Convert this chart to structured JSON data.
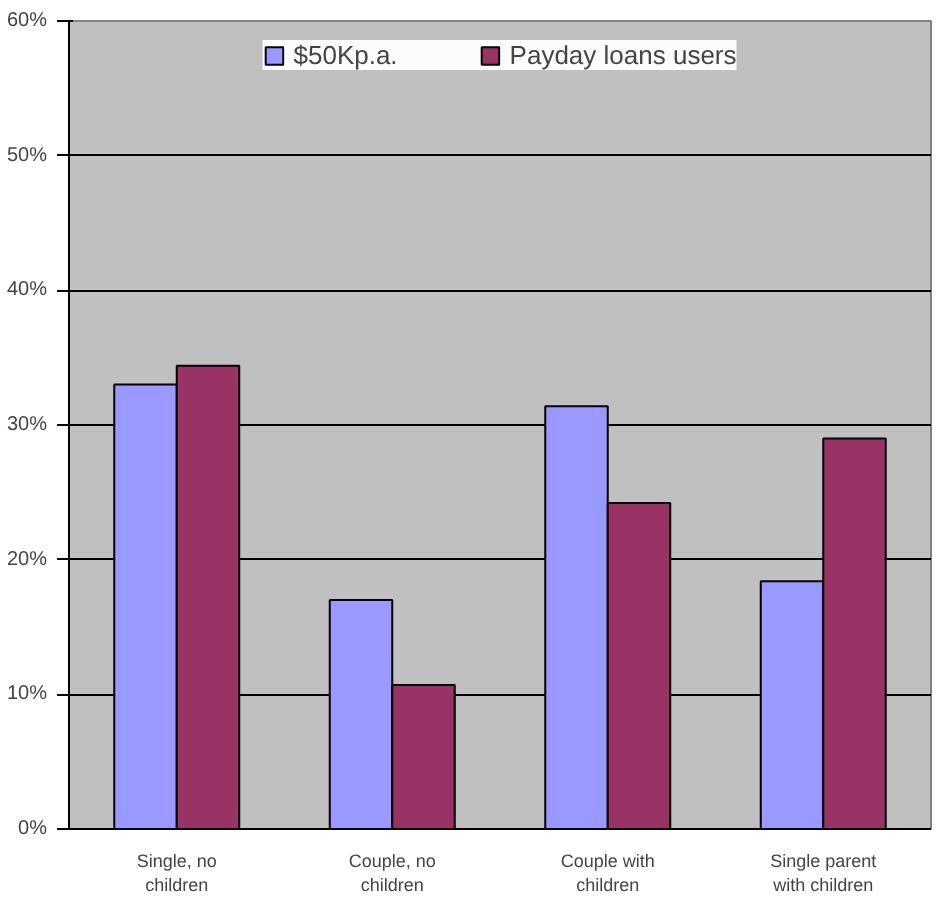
{
  "chart_data": {
    "type": "bar",
    "categories": [
      "Single, no children",
      "Couple, no children",
      "Couple with children",
      "Single parent with children"
    ],
    "series": [
      {
        "name": "$50Kp.a.",
        "color": "#9999ff",
        "values": [
          33.0,
          17.0,
          31.4,
          18.4
        ]
      },
      {
        "name": "Payday loans users",
        "color": "#993366",
        "values": [
          34.4,
          10.7,
          24.2,
          29.0
        ]
      }
    ],
    "ylim": [
      0,
      60
    ],
    "yticks": [
      {
        "value": 0,
        "label": "0%"
      },
      {
        "value": 10,
        "label": "10%"
      },
      {
        "value": 20,
        "label": "20%"
      },
      {
        "value": 30,
        "label": "30%"
      },
      {
        "value": 40,
        "label": "40%"
      },
      {
        "value": 50,
        "label": "50%"
      },
      {
        "value": 60,
        "label": "60%"
      }
    ],
    "grid": "y",
    "legend": "top"
  }
}
